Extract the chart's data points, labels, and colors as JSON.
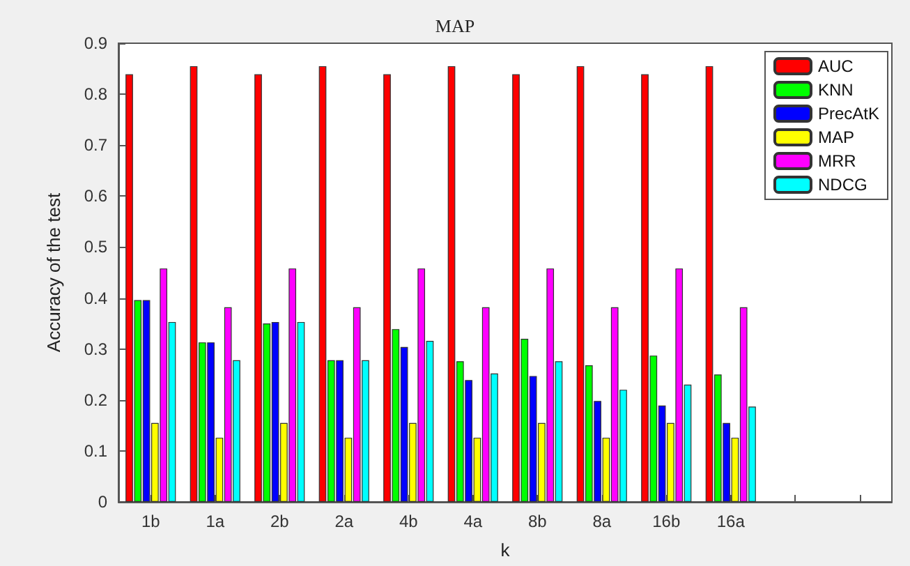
{
  "chart_data": {
    "type": "bar",
    "title": "MAP",
    "xlabel": "k",
    "ylabel": "Accuracy of the test",
    "categories": [
      "1b",
      "1a",
      "2b",
      "2a",
      "4b",
      "4a",
      "8b",
      "8a",
      "16b",
      "16a",
      null,
      null
    ],
    "series": [
      {
        "name": "AUC",
        "color": "#ff0000",
        "values": [
          0.839,
          0.855,
          0.839,
          0.855,
          0.839,
          0.855,
          0.839,
          0.855,
          0.839,
          0.855,
          null,
          null
        ]
      },
      {
        "name": "KNN",
        "color": "#00ff00",
        "values": [
          0.396,
          0.313,
          0.35,
          0.278,
          0.339,
          0.276,
          0.32,
          0.268,
          0.287,
          0.25,
          null,
          null
        ]
      },
      {
        "name": "PrecAtK",
        "color": "#0000ff",
        "values": [
          0.396,
          0.313,
          0.353,
          0.278,
          0.304,
          0.239,
          0.247,
          0.198,
          0.189,
          0.155,
          null,
          null
        ]
      },
      {
        "name": "MAP",
        "color": "#ffff00",
        "values": [
          0.155,
          0.126,
          0.155,
          0.126,
          0.155,
          0.126,
          0.155,
          0.126,
          0.155,
          0.126,
          null,
          null
        ]
      },
      {
        "name": "MRR",
        "color": "#ff00ff",
        "values": [
          0.458,
          0.382,
          0.458,
          0.382,
          0.458,
          0.382,
          0.458,
          0.382,
          0.458,
          0.382,
          null,
          null
        ]
      },
      {
        "name": "NDCG",
        "color": "#00ffff",
        "values": [
          0.353,
          0.278,
          0.353,
          0.278,
          0.316,
          0.252,
          0.276,
          0.22,
          0.23,
          0.187,
          null,
          null
        ]
      }
    ],
    "ylim": [
      0,
      0.9
    ],
    "yticks": [
      0,
      0.1,
      0.2,
      0.3,
      0.4,
      0.5,
      0.6,
      0.7,
      0.8,
      0.9
    ],
    "grid": false,
    "legend": "top right"
  }
}
